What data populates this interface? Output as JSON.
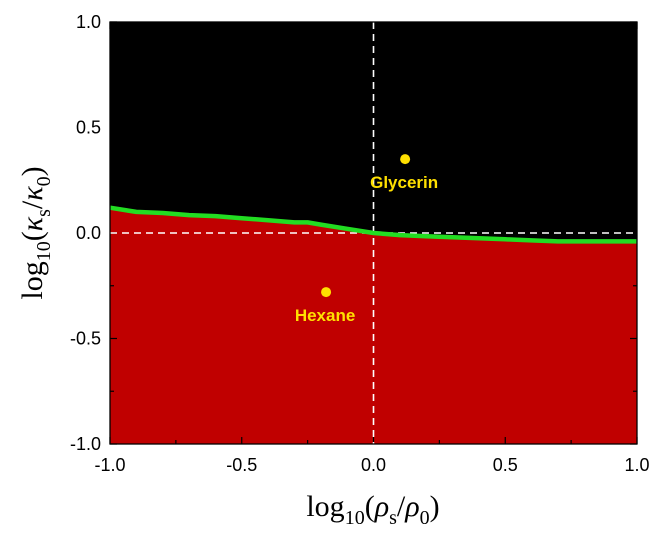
{
  "chart_data": {
    "type": "area",
    "xlabel": {
      "prefix": "log",
      "sub": "10",
      "open": "(",
      "sym_a": "ρ",
      "sub_a": "s",
      "slash": "/",
      "sym_b": "ρ",
      "sub_b": "0",
      "close": ")"
    },
    "ylabel": {
      "prefix": "log",
      "sub": "10",
      "open": "(",
      "sym_a": "κ",
      "sub_a": "s",
      "slash": "/",
      "sym_b": "κ",
      "sub_b": "0",
      "close": ")"
    },
    "xlim": [
      -1.0,
      1.0
    ],
    "ylim": [
      -1.0,
      1.0
    ],
    "x_ticks": [
      "-1.0",
      "-0.5",
      "0.0",
      "0.5",
      "1.0"
    ],
    "y_ticks": [
      "1.0",
      "0.5",
      "0.0",
      "-0.5",
      "-1.0"
    ],
    "reference_lines": {
      "x": 0.0,
      "y": 0.0,
      "style": "dashed",
      "color": "#ffffff"
    },
    "regions": {
      "above_color": "#000000",
      "below_color": "#c00000"
    },
    "boundary": {
      "color": "#22dd22",
      "x": [
        -1.0,
        -0.9,
        -0.8,
        -0.7,
        -0.6,
        -0.5,
        -0.4,
        -0.3,
        -0.25,
        -0.2,
        -0.1,
        0.0,
        0.1,
        0.2,
        0.3,
        0.4,
        0.5,
        0.6,
        0.7,
        0.8,
        0.9,
        1.0
      ],
      "y": [
        0.12,
        0.1,
        0.095,
        0.085,
        0.08,
        0.07,
        0.06,
        0.05,
        0.05,
        0.04,
        0.02,
        0.0,
        -0.01,
        -0.015,
        -0.02,
        -0.025,
        -0.03,
        -0.035,
        -0.04,
        -0.04,
        -0.04,
        -0.04
      ]
    },
    "points": [
      {
        "label": "Glycerin",
        "x": 0.12,
        "y": 0.35,
        "color": "#ffe000"
      },
      {
        "label": "Hexane",
        "x": -0.18,
        "y": -0.28,
        "color": "#ffe000"
      }
    ]
  }
}
